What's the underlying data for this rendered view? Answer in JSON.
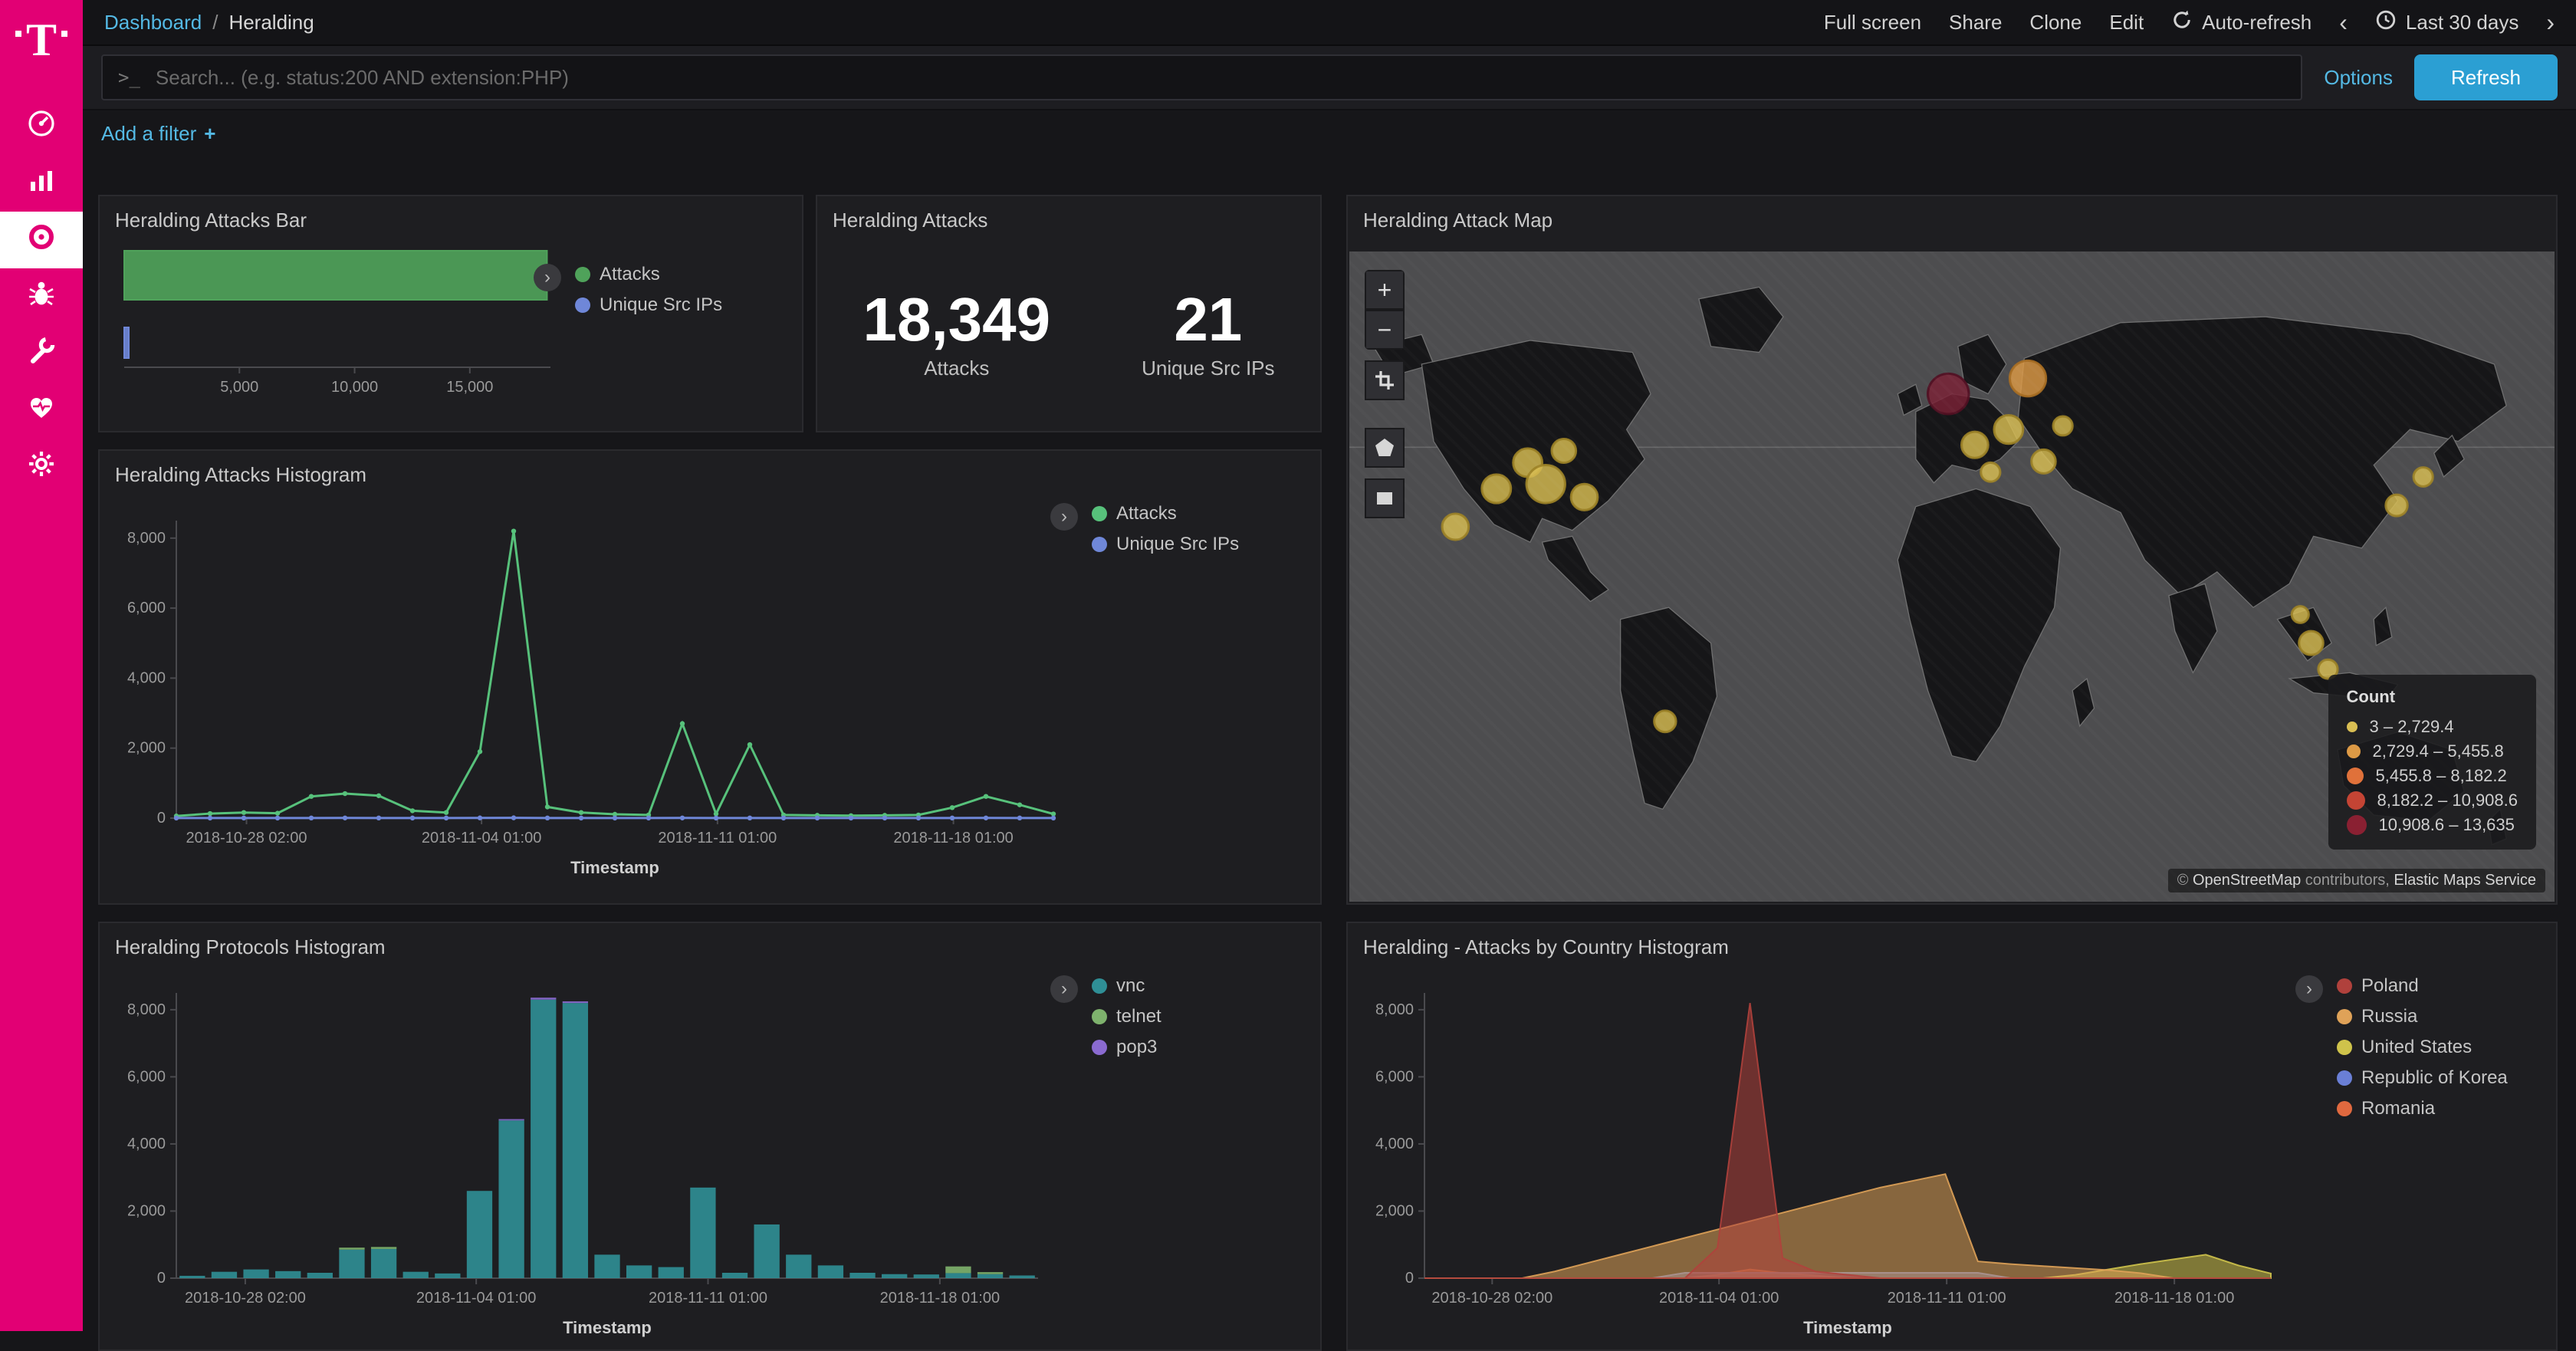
{
  "sidebar": {
    "brand": "T",
    "accent": "#e20074",
    "icons": [
      "gauge",
      "bar-chart",
      "target",
      "bug",
      "wrench",
      "heartbeat",
      "gear"
    ]
  },
  "topbar": {
    "breadcrumb": {
      "root": "Dashboard",
      "separator": "/",
      "current": "Heralding"
    },
    "actions": [
      "Full screen",
      "Share",
      "Clone",
      "Edit"
    ],
    "auto_refresh_label": "Auto-refresh",
    "prev_icon": "‹",
    "time_range_label": "Last 30 days",
    "next_icon": "›"
  },
  "search": {
    "prompt": ">_",
    "placeholder": "Search... (e.g. status:200 AND extension:PHP)",
    "options_label": "Options",
    "refresh_label": "Refresh"
  },
  "filters": {
    "add_label": "Add a filter",
    "plus": "+"
  },
  "panels": {
    "attacks_bar": {
      "title": "Heralding Attacks Bar"
    },
    "attacks_metric": {
      "title": "Heralding Attacks"
    },
    "attack_map": {
      "title": "Heralding Attack Map",
      "attribution": {
        "copyright": "©",
        "osm": "OpenStreetMap",
        "contributors": " contributors, ",
        "elastic": "Elastic Maps Service"
      }
    },
    "attacks_histogram": {
      "title": "Heralding Attacks Histogram"
    },
    "protocols_histogram": {
      "title": "Heralding Protocols Histogram"
    },
    "country_histogram": {
      "title": "Heralding - Attacks by Country Histogram"
    }
  },
  "chart_data": [
    {
      "id": "attacks-bar",
      "type": "bar",
      "orientation": "horizontal",
      "title": "Heralding Attacks Bar",
      "categories": [
        "Attacks",
        "Unique Src IPs"
      ],
      "series": [
        {
          "name": "Attacks",
          "color": "#4fa25a",
          "value": 18349
        },
        {
          "name": "Unique Src IPs",
          "color": "#6f87d8",
          "value": 21
        }
      ],
      "xlim": [
        0,
        18500
      ],
      "xticks": [
        5000,
        10000,
        15000
      ]
    },
    {
      "id": "attacks-metric",
      "type": "metric",
      "title": "Heralding Attacks",
      "values": [
        {
          "label": "Attacks",
          "value": 18349,
          "text": "18,349"
        },
        {
          "label": "Unique Src IPs",
          "value": 21,
          "text": "21"
        }
      ]
    },
    {
      "id": "attacks-histogram",
      "type": "line",
      "title": "Heralding Attacks Histogram",
      "xlabel": "Timestamp",
      "ylim": [
        0,
        8500
      ],
      "yticks": [
        0,
        2000,
        4000,
        6000,
        8000
      ],
      "xticks": [
        {
          "pos": 0.08,
          "label": "2018-10-28 02:00"
        },
        {
          "pos": 0.348,
          "label": "2018-11-04 01:00"
        },
        {
          "pos": 0.617,
          "label": "2018-11-11 01:00"
        },
        {
          "pos": 0.886,
          "label": "2018-11-18 01:00"
        }
      ],
      "series": [
        {
          "name": "Attacks",
          "color": "#57c17b",
          "values": [
            60,
            130,
            160,
            140,
            620,
            700,
            640,
            210,
            160,
            1900,
            8200,
            320,
            160,
            110,
            90,
            2700,
            120,
            2100,
            90,
            80,
            70,
            80,
            90,
            300,
            620,
            380,
            120
          ]
        },
        {
          "name": "Unique Src IPs",
          "color": "#6f87d8",
          "values": [
            2,
            3,
            3,
            3,
            4,
            5,
            4,
            3,
            3,
            6,
            8,
            4,
            3,
            3,
            3,
            5,
            3,
            4,
            3,
            3,
            2,
            3,
            3,
            4,
            5,
            4,
            3
          ]
        }
      ]
    },
    {
      "id": "protocols-histogram",
      "type": "bar",
      "stacked": true,
      "title": "Heralding Protocols Histogram",
      "xlabel": "Timestamp",
      "ylim": [
        0,
        8500
      ],
      "yticks": [
        0,
        2000,
        4000,
        6000,
        8000
      ],
      "xticks": [
        {
          "pos": 0.08,
          "label": "2018-10-28 02:00"
        },
        {
          "pos": 0.348,
          "label": "2018-11-04 01:00"
        },
        {
          "pos": 0.617,
          "label": "2018-11-11 01:00"
        },
        {
          "pos": 0.886,
          "label": "2018-11-18 01:00"
        }
      ],
      "series": [
        {
          "name": "vnc",
          "color": "#2f8f96",
          "values": [
            70,
            190,
            260,
            210,
            160,
            850,
            870,
            190,
            140,
            2600,
            4700,
            8300,
            8200,
            700,
            380,
            330,
            2700,
            160,
            1600,
            700,
            380,
            160,
            120,
            110,
            150,
            120,
            80
          ]
        },
        {
          "name": "telnet",
          "color": "#7eb26d",
          "values": [
            0,
            0,
            0,
            0,
            0,
            60,
            60,
            0,
            0,
            0,
            0,
            0,
            0,
            0,
            0,
            0,
            0,
            0,
            0,
            0,
            0,
            0,
            0,
            0,
            200,
            60,
            0
          ]
        },
        {
          "name": "pop3",
          "color": "#8a6ad0",
          "values": [
            0,
            0,
            0,
            0,
            0,
            0,
            0,
            0,
            0,
            0,
            40,
            60,
            50,
            0,
            0,
            0,
            0,
            0,
            0,
            0,
            0,
            0,
            0,
            0,
            0,
            0,
            0
          ]
        }
      ]
    },
    {
      "id": "country-histogram",
      "type": "area",
      "title": "Heralding - Attacks by Country Histogram",
      "xlabel": "Timestamp",
      "ylim": [
        0,
        8500
      ],
      "yticks": [
        0,
        2000,
        4000,
        6000,
        8000
      ],
      "xticks": [
        {
          "pos": 0.08,
          "label": "2018-10-28 02:00"
        },
        {
          "pos": 0.348,
          "label": "2018-11-04 01:00"
        },
        {
          "pos": 0.617,
          "label": "2018-11-11 01:00"
        },
        {
          "pos": 0.886,
          "label": "2018-11-18 01:00"
        }
      ],
      "series": [
        {
          "name": "Poland",
          "color": "#b0413c",
          "values": [
            0,
            0,
            0,
            0,
            0,
            0,
            0,
            0,
            0,
            900,
            8200,
            600,
            200,
            100,
            0,
            0,
            0,
            0,
            0,
            0,
            0,
            0,
            0,
            0,
            0,
            0,
            0
          ]
        },
        {
          "name": "Russia",
          "color": "#dfa258",
          "values": [
            0,
            0,
            0,
            0,
            200,
            450,
            700,
            950,
            1200,
            1450,
            1700,
            1950,
            2200,
            2450,
            2700,
            2900,
            3100,
            500,
            420,
            360,
            300,
            240,
            150,
            0,
            0,
            0,
            0
          ]
        },
        {
          "name": "United States",
          "color": "#cfc34b",
          "values": [
            0,
            0,
            0,
            0,
            0,
            0,
            0,
            0,
            0,
            0,
            0,
            0,
            0,
            0,
            0,
            0,
            0,
            0,
            0,
            0,
            100,
            260,
            420,
            560,
            700,
            380,
            140
          ]
        },
        {
          "name": "Republic of Korea",
          "color": "#6a7fd6",
          "values": [
            0,
            0,
            0,
            0,
            0,
            0,
            0,
            0,
            160,
            160,
            160,
            160,
            160,
            160,
            160,
            160,
            160,
            160,
            0,
            0,
            0,
            0,
            0,
            0,
            0,
            0,
            0
          ]
        },
        {
          "name": "Romania",
          "color": "#e0693f",
          "values": [
            0,
            0,
            0,
            0,
            0,
            0,
            0,
            0,
            0,
            100,
            260,
            150,
            80,
            0,
            0,
            0,
            0,
            0,
            0,
            0,
            0,
            0,
            0,
            0,
            0,
            0,
            0
          ]
        }
      ]
    },
    {
      "id": "attack-map",
      "type": "map",
      "title": "Heralding Attack Map",
      "legend_title": "Count",
      "buckets": [
        {
          "range": "3 – 2,729.4",
          "color": "#d9be53"
        },
        {
          "range": "2,729.4 – 5,455.8",
          "color": "#dd9a45"
        },
        {
          "range": "5,455.8 – 8,182.2",
          "color": "#e0713a"
        },
        {
          "range": "8,182.2 – 10,908.6",
          "color": "#c44434"
        },
        {
          "range": "10,908.6 – 13,635",
          "color": "#8a2032"
        }
      ],
      "points": [
        {
          "x": 88,
          "y": 232,
          "r": 11,
          "f": "#d9be53",
          "s": "#9c8226"
        },
        {
          "x": 122,
          "y": 200,
          "r": 12,
          "f": "#d9be53",
          "s": "#9c8226"
        },
        {
          "x": 148,
          "y": 178,
          "r": 12,
          "f": "#d9be53",
          "s": "#9c8226"
        },
        {
          "x": 163,
          "y": 196,
          "r": 16,
          "f": "#d9be53",
          "s": "#9c8226"
        },
        {
          "x": 178,
          "y": 168,
          "r": 10,
          "f": "#d9be53",
          "s": "#9c8226"
        },
        {
          "x": 195,
          "y": 207,
          "r": 11,
          "f": "#d9be53",
          "s": "#9c8226"
        },
        {
          "x": 262,
          "y": 396,
          "r": 9,
          "f": "#d9be53",
          "s": "#9c8226"
        },
        {
          "x": 497,
          "y": 120,
          "r": 17,
          "f": "#7a2136",
          "s": "#511022"
        },
        {
          "x": 563,
          "y": 107,
          "r": 15,
          "f": "#dd9a45",
          "s": "#a86e22"
        },
        {
          "x": 519,
          "y": 163,
          "r": 11,
          "f": "#d9be53",
          "s": "#9c8226"
        },
        {
          "x": 547,
          "y": 150,
          "r": 12,
          "f": "#d9be53",
          "s": "#9c8226"
        },
        {
          "x": 576,
          "y": 177,
          "r": 10,
          "f": "#d9be53",
          "s": "#9c8226"
        },
        {
          "x": 592,
          "y": 147,
          "r": 8,
          "f": "#d9be53",
          "s": "#9c8226"
        },
        {
          "x": 532,
          "y": 186,
          "r": 8,
          "f": "#d9be53",
          "s": "#9c8226"
        },
        {
          "x": 869,
          "y": 214,
          "r": 9,
          "f": "#d9be53",
          "s": "#9c8226"
        },
        {
          "x": 891,
          "y": 190,
          "r": 8,
          "f": "#d9be53",
          "s": "#9c8226"
        },
        {
          "x": 798,
          "y": 330,
          "r": 10,
          "f": "#d9be53",
          "s": "#9c8226"
        },
        {
          "x": 812,
          "y": 352,
          "r": 8,
          "f": "#d9be53",
          "s": "#9c8226"
        },
        {
          "x": 789,
          "y": 306,
          "r": 7,
          "f": "#d9be53",
          "s": "#9c8226"
        }
      ]
    }
  ]
}
